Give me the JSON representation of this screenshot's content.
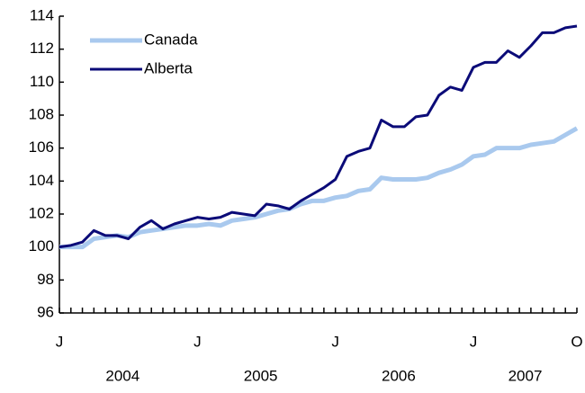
{
  "chart_data": {
    "type": "line",
    "categories": [
      "J",
      null,
      null,
      null,
      null,
      null,
      null,
      null,
      null,
      null,
      null,
      null,
      "J",
      null,
      null,
      null,
      null,
      null,
      null,
      null,
      null,
      null,
      null,
      null,
      "J",
      null,
      null,
      null,
      null,
      null,
      null,
      null,
      null,
      null,
      null,
      null,
      "J",
      null,
      null,
      null,
      null,
      null,
      null,
      null,
      null,
      "O"
    ],
    "year_labels": [
      "2004",
      "2005",
      "2006",
      "2007"
    ],
    "series": [
      {
        "name": "Canada",
        "color": "#a9c9ee",
        "values": [
          100.0,
          100.0,
          100.0,
          100.5,
          100.6,
          100.7,
          100.6,
          100.9,
          101.0,
          101.1,
          101.2,
          101.3,
          101.3,
          101.4,
          101.3,
          101.6,
          101.7,
          101.8,
          102.0,
          102.2,
          102.3,
          102.6,
          102.8,
          102.8,
          103.0,
          103.1,
          103.4,
          103.5,
          104.2,
          104.1,
          104.1,
          104.1,
          104.2,
          104.5,
          104.7,
          105.0,
          105.5,
          105.6,
          106.0,
          106.0,
          106.0,
          106.2,
          106.3,
          106.4,
          106.8,
          107.2
        ]
      },
      {
        "name": "Alberta",
        "color": "#0b0b78",
        "values": [
          100.0,
          100.1,
          100.3,
          101.0,
          100.7,
          100.7,
          100.5,
          101.2,
          101.6,
          101.1,
          101.4,
          101.6,
          101.8,
          101.7,
          101.8,
          102.1,
          102.0,
          101.9,
          102.6,
          102.5,
          102.3,
          102.8,
          103.2,
          103.6,
          104.1,
          105.5,
          105.8,
          106.0,
          107.7,
          107.3,
          107.3,
          107.9,
          108.0,
          109.2,
          109.7,
          109.5,
          110.9,
          111.2,
          111.2,
          111.9,
          111.5,
          112.2,
          113.0,
          113.0,
          113.3,
          113.4
        ]
      }
    ],
    "ylim": [
      96,
      114
    ],
    "yticks": [
      96,
      98,
      100,
      102,
      104,
      106,
      108,
      110,
      112,
      114
    ],
    "grid": false,
    "legend": "upper-left"
  }
}
